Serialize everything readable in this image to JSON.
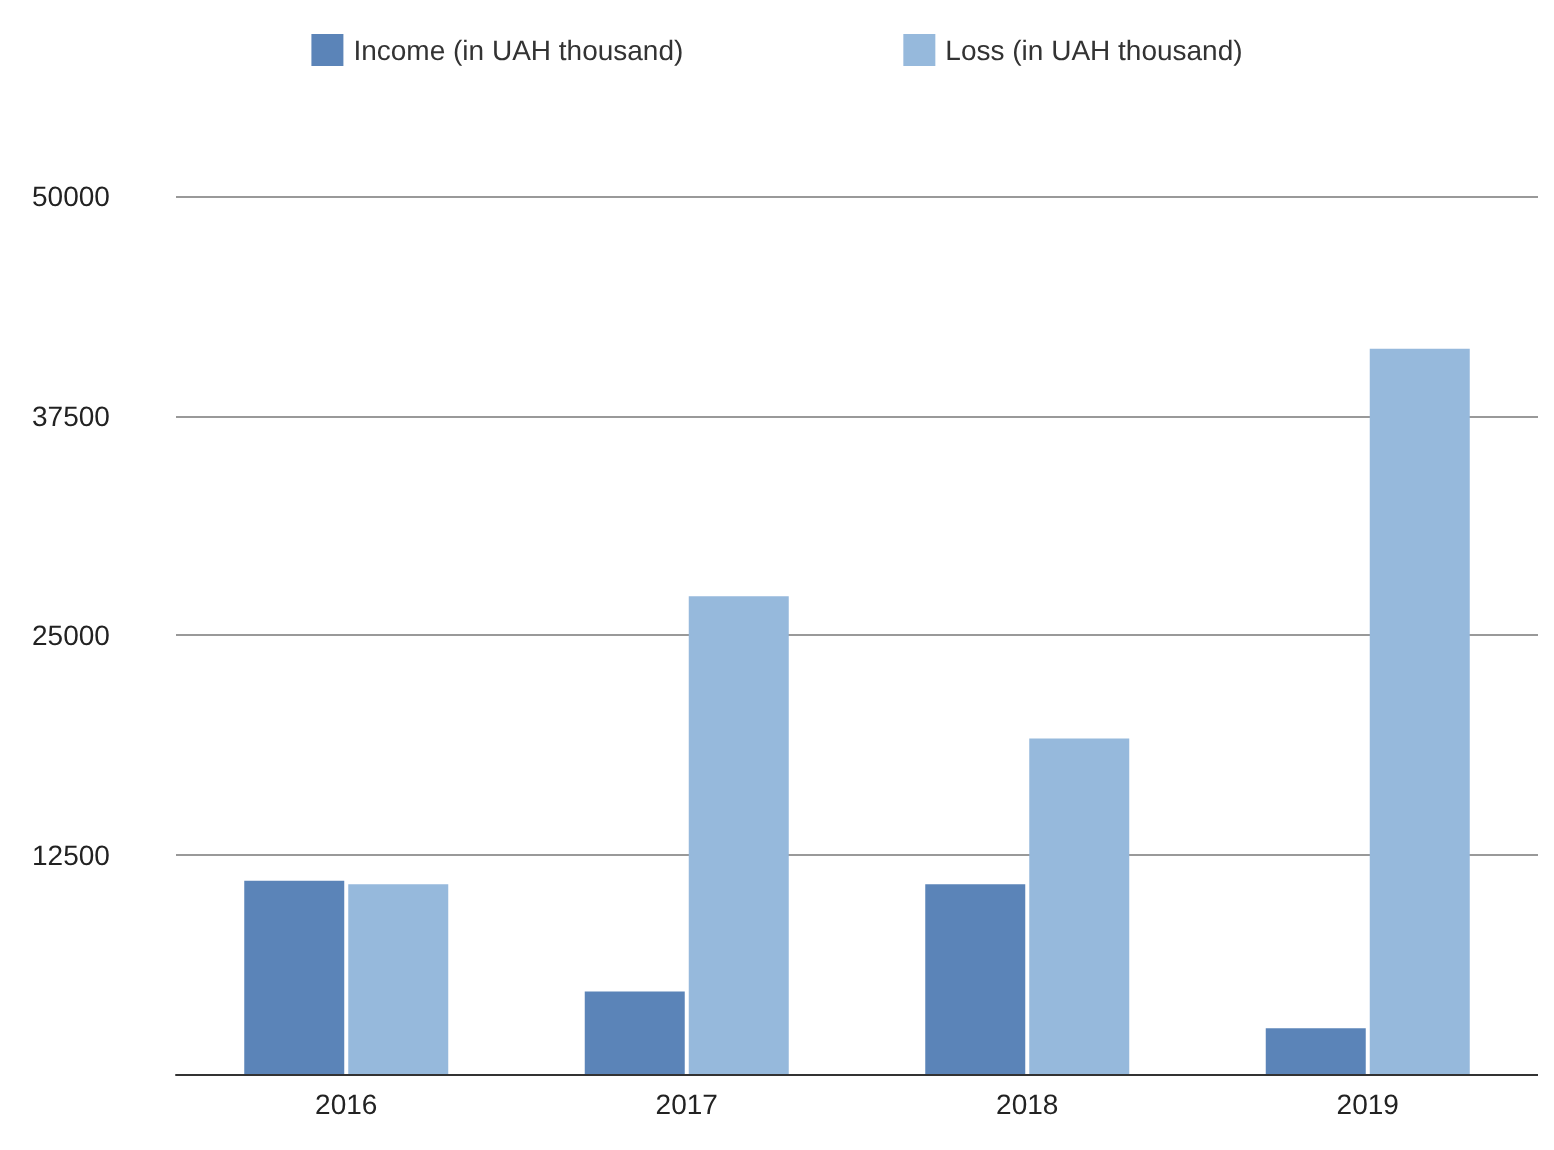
{
  "chart_data": {
    "type": "bar",
    "categories": [
      "2016",
      "2017",
      "2018",
      "2019"
    ],
    "series": [
      {
        "name": "Income (in UAH thousand)",
        "color": "#5b84b8",
        "values": [
          11000,
          4700,
          10800,
          2600
        ]
      },
      {
        "name": "Loss (in UAH thousand)",
        "color": "#96b9dc",
        "values": [
          10800,
          27200,
          19100,
          41300
        ]
      }
    ],
    "ylim": [
      0,
      50000
    ],
    "yticks": [
      12500,
      25000,
      37500,
      50000
    ],
    "grid": "y",
    "legend": "top"
  }
}
